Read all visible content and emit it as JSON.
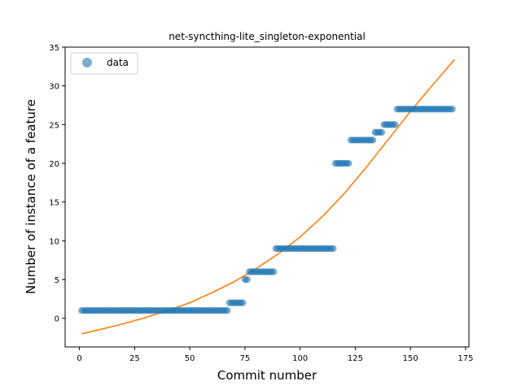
{
  "chart_data": {
    "type": "scatter",
    "title": "net-syncthing-lite_singleton-exponential",
    "xlabel": "Commit number",
    "ylabel": "Number of instance of a feature",
    "xlim": [
      -6.5,
      176.5
    ],
    "ylim": [
      -3.7,
      35
    ],
    "xticks": [
      0,
      25,
      50,
      75,
      100,
      125,
      150,
      175
    ],
    "yticks": [
      0,
      5,
      10,
      15,
      20,
      25,
      30,
      35
    ],
    "grid": false,
    "legend": {
      "position": "top-left",
      "entries": [
        "data"
      ]
    },
    "colors": {
      "data": "#1f77b4",
      "fit": "#ff7f0e"
    },
    "series": [
      {
        "name": "data",
        "kind": "scatter",
        "segments": [
          {
            "x_from": 1,
            "x_to": 67,
            "y": 1
          },
          {
            "x_from": 68,
            "x_to": 74,
            "y": 2
          },
          {
            "x_from": 75,
            "x_to": 76,
            "y": 5
          },
          {
            "x_from": 77,
            "x_to": 88,
            "y": 6
          },
          {
            "x_from": 89,
            "x_to": 115,
            "y": 9
          },
          {
            "x_from": 116,
            "x_to": 122,
            "y": 20
          },
          {
            "x_from": 123,
            "x_to": 133,
            "y": 23
          },
          {
            "x_from": 134,
            "x_to": 137,
            "y": 24
          },
          {
            "x_from": 138,
            "x_to": 143,
            "y": 25
          },
          {
            "x_from": 144,
            "x_to": 169,
            "y": 27
          }
        ]
      },
      {
        "kind": "line",
        "x": [
          1,
          10,
          20,
          30,
          40,
          50,
          60,
          70,
          80,
          90,
          100,
          110,
          120,
          130,
          140,
          150,
          160,
          170
        ],
        "y": [
          -2.0,
          -1.4,
          -0.7,
          0.1,
          1.0,
          2.0,
          3.3,
          4.7,
          6.4,
          8.3,
          10.5,
          13.1,
          16.1,
          19.5,
          23.1,
          26.7,
          30.1,
          33.4
        ]
      }
    ]
  }
}
